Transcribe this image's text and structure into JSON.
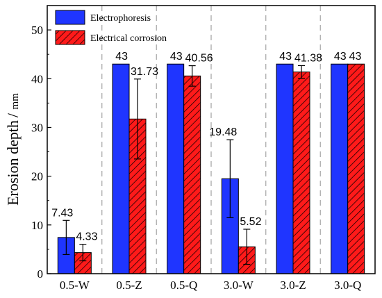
{
  "chart_data": {
    "type": "bar",
    "categories": [
      "0.5-W",
      "0.5-Z",
      "0.5-Q",
      "3.0-W",
      "3.0-Z",
      "3.0-Q"
    ],
    "series": [
      {
        "name": "Electrophoresis",
        "color": "#1f35ff",
        "values": [
          7.43,
          43,
          43,
          19.48,
          43,
          43
        ],
        "value_labels": [
          "7.43",
          "43",
          "43",
          "19.48",
          "43",
          "43"
        ],
        "errors": [
          3.5,
          0,
          0,
          8,
          0,
          0
        ]
      },
      {
        "name": "Electrical corrosion",
        "color": "#ff1a1a",
        "pattern": "diagonal-hatch",
        "values": [
          4.33,
          31.73,
          40.56,
          5.52,
          41.38,
          43
        ],
        "value_labels": [
          "4.33",
          "31.73",
          "40.56",
          "5.52",
          "41.38",
          "43"
        ],
        "errors": [
          1.7,
          8.2,
          2.1,
          3.6,
          1.3,
          0
        ]
      }
    ],
    "ylabel": "Erosion depth",
    "yunit": "mm",
    "ylim": [
      0,
      55
    ],
    "yticks": [
      0,
      10,
      20,
      30,
      40,
      50
    ],
    "legend_placement": "top-left",
    "category_separators": "dashed"
  }
}
